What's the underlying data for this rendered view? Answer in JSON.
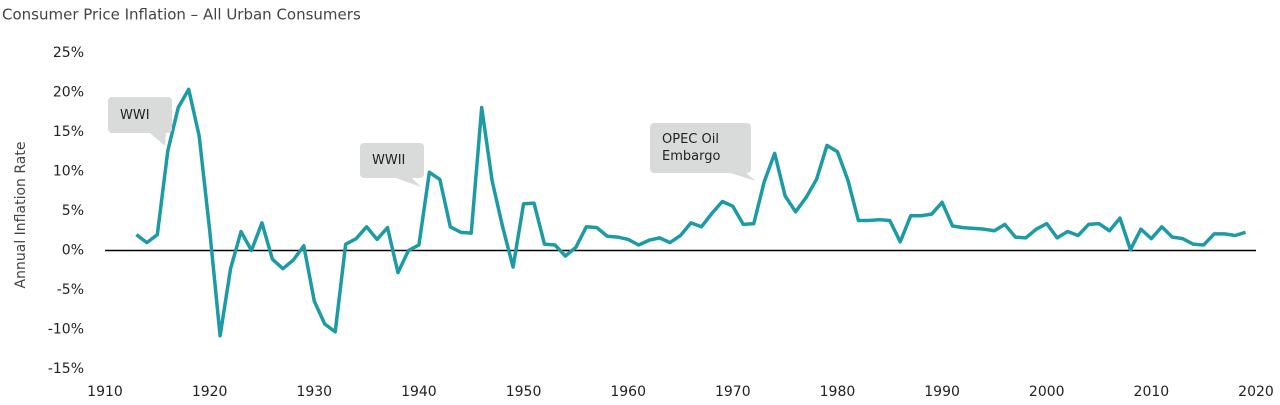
{
  "chart_data": {
    "type": "line",
    "title": "Consumer Price Inflation – All Urban Consumers",
    "y_label": "Annual Inflation Rate",
    "color": "#1c9ba5",
    "x": [
      1913,
      1914,
      1915,
      1916,
      1917,
      1918,
      1919,
      1920,
      1921,
      1922,
      1923,
      1924,
      1925,
      1926,
      1927,
      1928,
      1929,
      1930,
      1931,
      1932,
      1933,
      1934,
      1935,
      1936,
      1937,
      1938,
      1939,
      1940,
      1941,
      1942,
      1943,
      1944,
      1945,
      1946,
      1947,
      1948,
      1949,
      1950,
      1951,
      1952,
      1953,
      1954,
      1955,
      1956,
      1957,
      1958,
      1959,
      1960,
      1961,
      1962,
      1963,
      1964,
      1965,
      1966,
      1967,
      1968,
      1969,
      1970,
      1971,
      1972,
      1973,
      1974,
      1975,
      1976,
      1977,
      1978,
      1979,
      1980,
      1981,
      1982,
      1983,
      1984,
      1985,
      1986,
      1987,
      1988,
      1989,
      1990,
      1991,
      1992,
      1993,
      1994,
      1995,
      1996,
      1997,
      1998,
      1999,
      2000,
      2001,
      2002,
      2003,
      2004,
      2005,
      2006,
      2007,
      2008,
      2009,
      2010,
      2011,
      2012,
      2013,
      2014,
      2015,
      2016,
      2017,
      2018,
      2019
    ],
    "values": [
      2.0,
      1.0,
      2.0,
      12.6,
      18.1,
      20.4,
      14.5,
      2.6,
      -10.8,
      -2.3,
      2.4,
      0.0,
      3.5,
      -1.1,
      -2.3,
      -1.2,
      0.6,
      -6.4,
      -9.3,
      -10.3,
      0.8,
      1.5,
      3.0,
      1.4,
      2.9,
      -2.8,
      0.0,
      0.7,
      9.9,
      9.0,
      3.0,
      2.3,
      2.2,
      18.1,
      8.8,
      3.0,
      -2.1,
      5.9,
      6.0,
      0.8,
      0.7,
      -0.7,
      0.4,
      3.0,
      2.9,
      1.8,
      1.7,
      1.4,
      0.7,
      1.3,
      1.6,
      1.0,
      1.9,
      3.5,
      3.0,
      4.7,
      6.2,
      5.6,
      3.3,
      3.4,
      8.7,
      12.3,
      6.9,
      4.9,
      6.7,
      9.0,
      13.3,
      12.5,
      8.9,
      3.8,
      3.8,
      3.9,
      3.8,
      1.1,
      4.4,
      4.4,
      4.6,
      6.1,
      3.1,
      2.9,
      2.8,
      2.7,
      2.5,
      3.3,
      1.7,
      1.6,
      2.7,
      3.4,
      1.6,
      2.4,
      1.9,
      3.3,
      3.4,
      2.5,
      4.1,
      0.1,
      2.7,
      1.5,
      3.0,
      1.7,
      1.5,
      0.8,
      0.7,
      2.1,
      2.1,
      1.9,
      2.3
    ],
    "xlim": [
      1910,
      2020
    ],
    "xticks": [
      1910,
      1920,
      1930,
      1940,
      1950,
      1960,
      1970,
      1980,
      1990,
      2000,
      2010,
      2020
    ],
    "ylim": [
      -15,
      25
    ],
    "yticks": [
      {
        "value": 25,
        "label": "25%"
      },
      {
        "value": 20,
        "label": "20%"
      },
      {
        "value": 15,
        "label": "15%"
      },
      {
        "value": 10,
        "label": "10%"
      },
      {
        "value": 5,
        "label": "5%"
      },
      {
        "value": 0,
        "label": "0%"
      },
      {
        "value": -5,
        "label": "-5%"
      },
      {
        "value": -10,
        "label": "-10%"
      },
      {
        "value": -15,
        "label": "-15%"
      }
    ],
    "annotations": [
      {
        "text": "WWI"
      },
      {
        "text": "WWII"
      },
      {
        "text": "OPEC Oil Embargo"
      }
    ]
  }
}
